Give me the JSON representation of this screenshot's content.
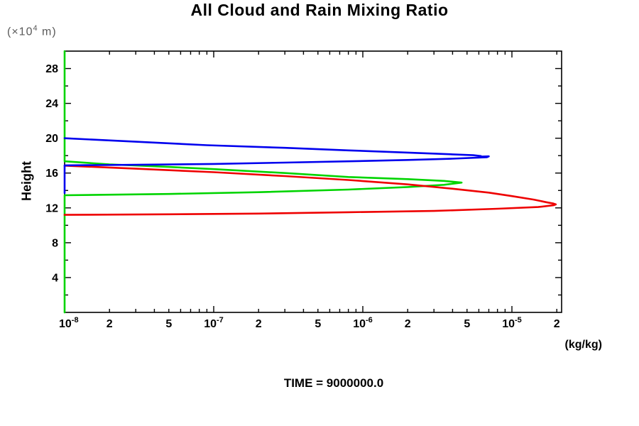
{
  "title": "All Cloud and Rain Mixing Ratio",
  "caption": "TIME = 9000000.0",
  "y_unit": {
    "prefix": "(×10",
    "exp": "4",
    "suffix": " m)"
  },
  "x_unit_label": "(kg/kg)",
  "y_axis_label": "Height",
  "chart_data": {
    "type": "line",
    "title": "All Cloud and Rain Mixing Ratio",
    "xlabel": "(kg/kg)",
    "ylabel": "Height (x10^4 m)",
    "x_scale": "log",
    "xlim": [
      1e-08,
      2.154e-05
    ],
    "ylim": [
      0,
      30
    ],
    "grid": false,
    "legend": "none",
    "x_ticks": [
      {
        "v": 1e-08,
        "base": "10",
        "exp": "-8"
      },
      {
        "v": 2e-08,
        "text": "2"
      },
      {
        "v": 5e-08,
        "text": "5"
      },
      {
        "v": 1e-07,
        "base": "10",
        "exp": "-7"
      },
      {
        "v": 2e-07,
        "text": "2"
      },
      {
        "v": 5e-07,
        "text": "5"
      },
      {
        "v": 1e-06,
        "base": "10",
        "exp": "-6"
      },
      {
        "v": 2e-06,
        "text": "2"
      },
      {
        "v": 5e-06,
        "text": "5"
      },
      {
        "v": 1e-05,
        "base": "10",
        "exp": "-5"
      },
      {
        "v": 2e-05,
        "text": "2"
      }
    ],
    "y_major_ticks": [
      4,
      8,
      12,
      16,
      20,
      24,
      28
    ],
    "y_minor_step": 2,
    "series": [
      {
        "name": "series-green",
        "color": "#00d400",
        "points": [
          [
            1e-08,
            0.0
          ],
          [
            1e-08,
            13.45
          ],
          [
            5e-08,
            13.6
          ],
          [
            2e-07,
            13.8
          ],
          [
            8e-07,
            14.1
          ],
          [
            2e-06,
            14.4
          ],
          [
            3.5e-06,
            14.65
          ],
          [
            4.6e-06,
            14.9
          ],
          [
            3.5e-06,
            15.1
          ],
          [
            2e-06,
            15.3
          ],
          [
            8e-07,
            15.55
          ],
          [
            3e-07,
            16.0
          ],
          [
            1e-07,
            16.45
          ],
          [
            5e-08,
            16.7
          ],
          [
            2e-08,
            17.0
          ],
          [
            1e-08,
            17.35
          ],
          [
            1e-08,
            30.0
          ]
        ]
      },
      {
        "name": "series-red",
        "color": "#ee0000",
        "points": [
          [
            1e-08,
            16.85
          ],
          [
            3e-08,
            16.5
          ],
          [
            1e-07,
            16.1
          ],
          [
            3e-07,
            15.65
          ],
          [
            8e-07,
            15.2
          ],
          [
            2e-06,
            14.7
          ],
          [
            4e-06,
            14.2
          ],
          [
            7e-06,
            13.75
          ],
          [
            1e-05,
            13.35
          ],
          [
            1.4e-05,
            12.95
          ],
          [
            1.7e-05,
            12.65
          ],
          [
            1.9e-05,
            12.5
          ],
          [
            1.97e-05,
            12.4
          ],
          [
            1.9e-05,
            12.3
          ],
          [
            1.5e-05,
            12.1
          ],
          [
            8e-06,
            11.9
          ],
          [
            3e-06,
            11.65
          ],
          [
            8e-07,
            11.5
          ],
          [
            2e-07,
            11.35
          ],
          [
            5e-08,
            11.27
          ],
          [
            1e-08,
            11.2
          ]
        ]
      },
      {
        "name": "series-blue",
        "color": "#0000ee",
        "points": [
          [
            1e-08,
            20.0
          ],
          [
            3e-08,
            19.6
          ],
          [
            9e-08,
            19.2
          ],
          [
            3e-07,
            18.9
          ],
          [
            8e-07,
            18.6
          ],
          [
            2e-06,
            18.35
          ],
          [
            4e-06,
            18.15
          ],
          [
            5.5e-06,
            18.05
          ],
          [
            6.2e-06,
            17.95
          ],
          [
            6e-06,
            17.88
          ],
          [
            7e-06,
            17.92
          ],
          [
            6.8e-06,
            17.82
          ],
          [
            4e-06,
            17.65
          ],
          [
            2e-06,
            17.5
          ],
          [
            8e-07,
            17.35
          ],
          [
            3e-07,
            17.2
          ],
          [
            1e-07,
            17.05
          ],
          [
            3e-08,
            16.95
          ],
          [
            1e-08,
            16.88
          ],
          [
            1e-08,
            13.7
          ]
        ]
      }
    ]
  }
}
